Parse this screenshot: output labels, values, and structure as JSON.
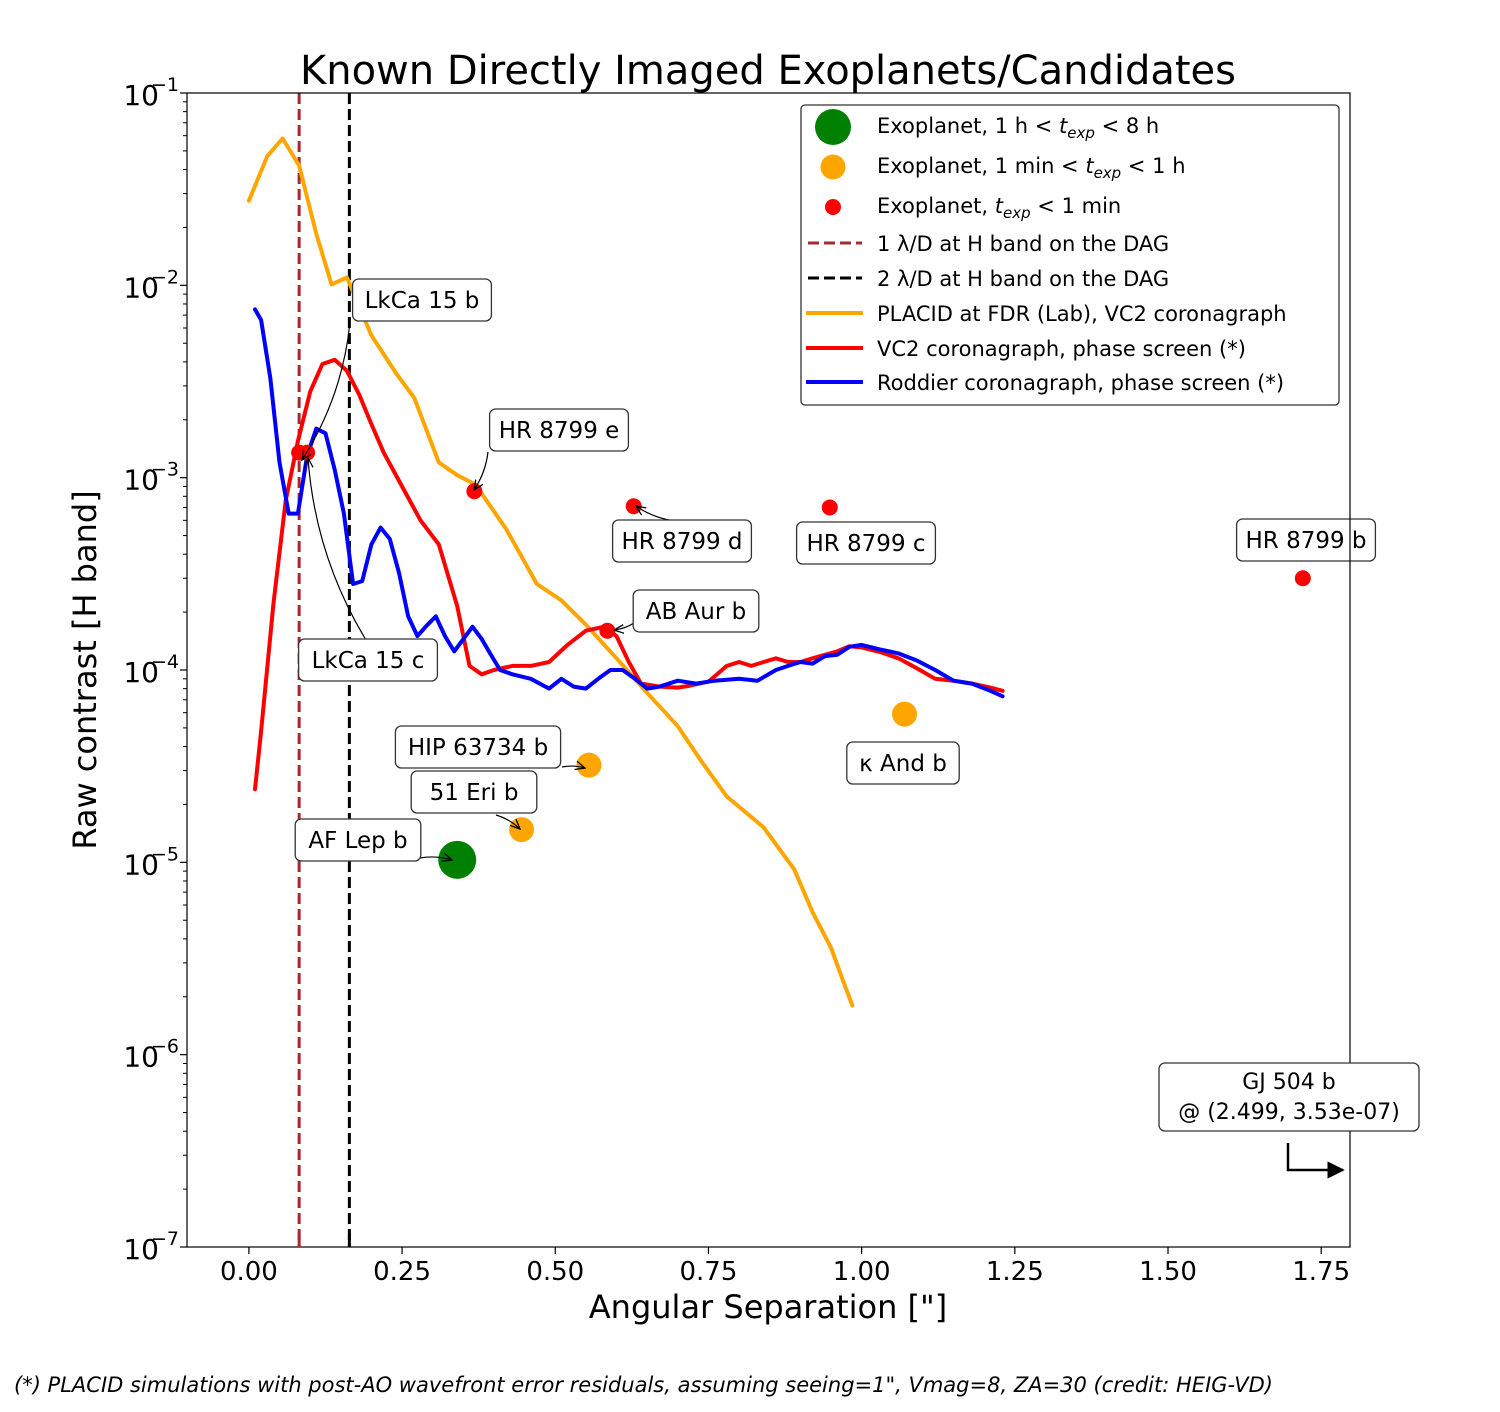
{
  "chart_data": {
    "type": "line",
    "title": "Known Directly Imaged Exoplanets/Candidates",
    "xlabel": "Angular Separation [\"]",
    "ylabel": "Raw contrast [H band]",
    "xscale": "linear",
    "yscale": "log",
    "xlim": [
      -0.101,
      1.797
    ],
    "ylim": [
      1e-07,
      0.1
    ],
    "xticks": [
      0.0,
      0.25,
      0.5,
      0.75,
      1.0,
      1.25,
      1.5,
      1.75
    ],
    "xtick_labels": [
      "0.00",
      "0.25",
      "0.50",
      "0.75",
      "1.00",
      "1.25",
      "1.50",
      "1.75"
    ],
    "yticks": [
      0.1,
      0.01,
      0.001,
      0.0001,
      1e-05,
      1e-06,
      1e-07
    ],
    "ytick_labels": [
      {
        "base": "10",
        "exp": "−1"
      },
      {
        "base": "10",
        "exp": "−2"
      },
      {
        "base": "10",
        "exp": "−3"
      },
      {
        "base": "10",
        "exp": "−4"
      },
      {
        "base": "10",
        "exp": "−5"
      },
      {
        "base": "10",
        "exp": "−6"
      },
      {
        "base": "10",
        "exp": "−7"
      }
    ],
    "grid": false,
    "legend_position": "top-right",
    "vlines": [
      {
        "name": "1 λ/D at H band on the DAG",
        "x": 0.082,
        "color": "#a52a2a",
        "style": "dashed"
      },
      {
        "name": "2 λ/D at H band on the DAG",
        "x": 0.164,
        "color": "#000000",
        "style": "dashed"
      }
    ],
    "series": [
      {
        "name": "PLACID at FDR (Lab), VC2 coronagraph",
        "color": "#ffa500",
        "x": [
          0.0,
          0.03,
          0.055,
          0.082,
          0.11,
          0.135,
          0.16,
          0.2,
          0.24,
          0.27,
          0.31,
          0.34,
          0.37,
          0.42,
          0.47,
          0.51,
          0.55,
          0.6,
          0.65,
          0.7,
          0.74,
          0.78,
          0.84,
          0.89,
          0.92,
          0.95,
          0.97,
          0.985
        ],
        "y": [
          0.0275,
          0.047,
          0.058,
          0.042,
          0.0185,
          0.0101,
          0.011,
          0.0055,
          0.0035,
          0.0026,
          0.0012,
          0.00103,
          0.00092,
          0.00054,
          0.00028,
          0.00023,
          0.000172,
          0.000115,
          7.6e-05,
          5.1e-05,
          3.3e-05,
          2.2e-05,
          1.52e-05,
          9.2e-06,
          5.5e-06,
          3.6e-06,
          2.4e-06,
          1.8e-06
        ]
      },
      {
        "name": "VC2 coronagraph, phase screen (*)",
        "color": "#ff0000",
        "x": [
          0.01,
          0.02,
          0.04,
          0.06,
          0.08,
          0.1,
          0.12,
          0.14,
          0.16,
          0.18,
          0.2,
          0.22,
          0.25,
          0.28,
          0.31,
          0.34,
          0.36,
          0.38,
          0.4,
          0.43,
          0.46,
          0.49,
          0.52,
          0.55,
          0.58,
          0.6,
          0.62,
          0.64,
          0.67,
          0.7,
          0.72,
          0.75,
          0.78,
          0.8,
          0.82,
          0.84,
          0.86,
          0.88,
          0.9,
          0.92,
          0.94,
          0.96,
          0.98,
          1.0,
          1.03,
          1.06,
          1.09,
          1.12,
          1.15,
          1.18,
          1.21,
          1.23
        ],
        "y": [
          2.4e-05,
          4.8e-05,
          0.00022,
          0.00076,
          0.00155,
          0.0028,
          0.0039,
          0.0041,
          0.0036,
          0.0027,
          0.0019,
          0.00135,
          0.0009,
          0.0006,
          0.00045,
          0.000215,
          0.000105,
          9.5e-05,
          0.0001,
          0.000105,
          0.000105,
          0.00011,
          0.000135,
          0.00016,
          0.000168,
          0.00015,
          0.00011,
          8.5e-05,
          8.2e-05,
          8.1e-05,
          8.3e-05,
          8.7e-05,
          0.000105,
          0.00011,
          0.000105,
          0.00011,
          0.000115,
          0.00011,
          0.00011,
          0.000115,
          0.00012,
          0.000125,
          0.000133,
          0.000131,
          0.000124,
          0.000115,
          0.000102,
          9e-05,
          8.8e-05,
          8.5e-05,
          8.1e-05,
          7.8e-05
        ]
      },
      {
        "name": "Roddier coronagraph, phase screen (*)",
        "color": "#0000ff",
        "x": [
          0.01,
          0.02,
          0.035,
          0.05,
          0.065,
          0.08,
          0.095,
          0.11,
          0.125,
          0.14,
          0.155,
          0.17,
          0.185,
          0.2,
          0.215,
          0.23,
          0.245,
          0.26,
          0.275,
          0.29,
          0.305,
          0.32,
          0.335,
          0.35,
          0.365,
          0.38,
          0.395,
          0.41,
          0.43,
          0.46,
          0.49,
          0.51,
          0.53,
          0.55,
          0.57,
          0.59,
          0.61,
          0.63,
          0.65,
          0.67,
          0.7,
          0.73,
          0.76,
          0.8,
          0.83,
          0.86,
          0.88,
          0.9,
          0.92,
          0.94,
          0.96,
          0.98,
          1.0,
          1.03,
          1.06,
          1.09,
          1.12,
          1.15,
          1.18,
          1.21,
          1.23
        ],
        "y": [
          0.0075,
          0.0066,
          0.0033,
          0.0012,
          0.00065,
          0.00065,
          0.0013,
          0.0018,
          0.0017,
          0.0011,
          0.00065,
          0.00028,
          0.00029,
          0.00045,
          0.00055,
          0.00048,
          0.00032,
          0.00019,
          0.00015,
          0.00017,
          0.00019,
          0.00015,
          0.000125,
          0.000145,
          0.000168,
          0.000145,
          0.00012,
          0.0001,
          9.5e-05,
          9e-05,
          8e-05,
          9e-05,
          8.2e-05,
          8e-05,
          9e-05,
          0.0001,
          0.0001,
          9e-05,
          8e-05,
          8.2e-05,
          8.8e-05,
          8.5e-05,
          8.8e-05,
          9e-05,
          8.8e-05,
          0.0001,
          0.000105,
          0.00011,
          0.000108,
          0.000118,
          0.00012,
          0.000132,
          0.000135,
          0.000128,
          0.000122,
          0.000112,
          0.0001,
          8.8e-05,
          8.5e-05,
          7.8e-05,
          7.3e-05
        ]
      }
    ],
    "marker_classes": [
      {
        "name": "Exoplanet, 1 h < t_exp < 8 h",
        "label_pre": "Exoplanet, 1 h < ",
        "label_post": " < 8 h",
        "color": "#008000",
        "size": "large"
      },
      {
        "name": "Exoplanet, 1 min < t_exp < 1 h",
        "label_pre": "Exoplanet, 1 min < ",
        "label_post": " < 1 h",
        "color": "#ffa500",
        "size": "medium"
      },
      {
        "name": "Exoplanet, t_exp < 1 min",
        "label_pre": "Exoplanet, ",
        "label_post": " < 1 min",
        "color": "#ff0000",
        "size": "small"
      }
    ],
    "t_exp_symbol": {
      "base": "t",
      "sub": "exp"
    },
    "planets": [
      {
        "name": "LkCa 15 b",
        "x": 0.082,
        "y": 0.00135,
        "class": 2
      },
      {
        "name": "LkCa 15 c",
        "x": 0.095,
        "y": 0.00135,
        "class": 2
      },
      {
        "name": "HR 8799 e",
        "x": 0.368,
        "y": 0.00085,
        "class": 2
      },
      {
        "name": "HR 8799 d",
        "x": 0.628,
        "y": 0.00071,
        "class": 2
      },
      {
        "name": "HR 8799 c",
        "x": 0.948,
        "y": 0.0007,
        "class": 2
      },
      {
        "name": "HR 8799 b",
        "x": 1.72,
        "y": 0.0003,
        "class": 2
      },
      {
        "name": "AB Aur b",
        "x": 0.585,
        "y": 0.00016,
        "class": 2
      },
      {
        "name": "κ And b",
        "x": 1.07,
        "y": 5.9e-05,
        "class": 1
      },
      {
        "name": "HIP 63734 b",
        "x": 0.555,
        "y": 3.2e-05,
        "class": 1
      },
      {
        "name": "51 Eri b",
        "x": 0.445,
        "y": 1.48e-05,
        "class": 1
      },
      {
        "name": "AF Lep b",
        "x": 0.34,
        "y": 1.03e-05,
        "class": 0
      }
    ],
    "offscale_annotation": {
      "line1": "GJ 504 b",
      "line2": "@ (2.499, 3.53e-07)"
    }
  },
  "footnote": "(*) PLACID simulations with post-AO wavefront error residuals, assuming seeing=1\", Vmag=8, ZA=30 (credit: HEIG-VD)"
}
